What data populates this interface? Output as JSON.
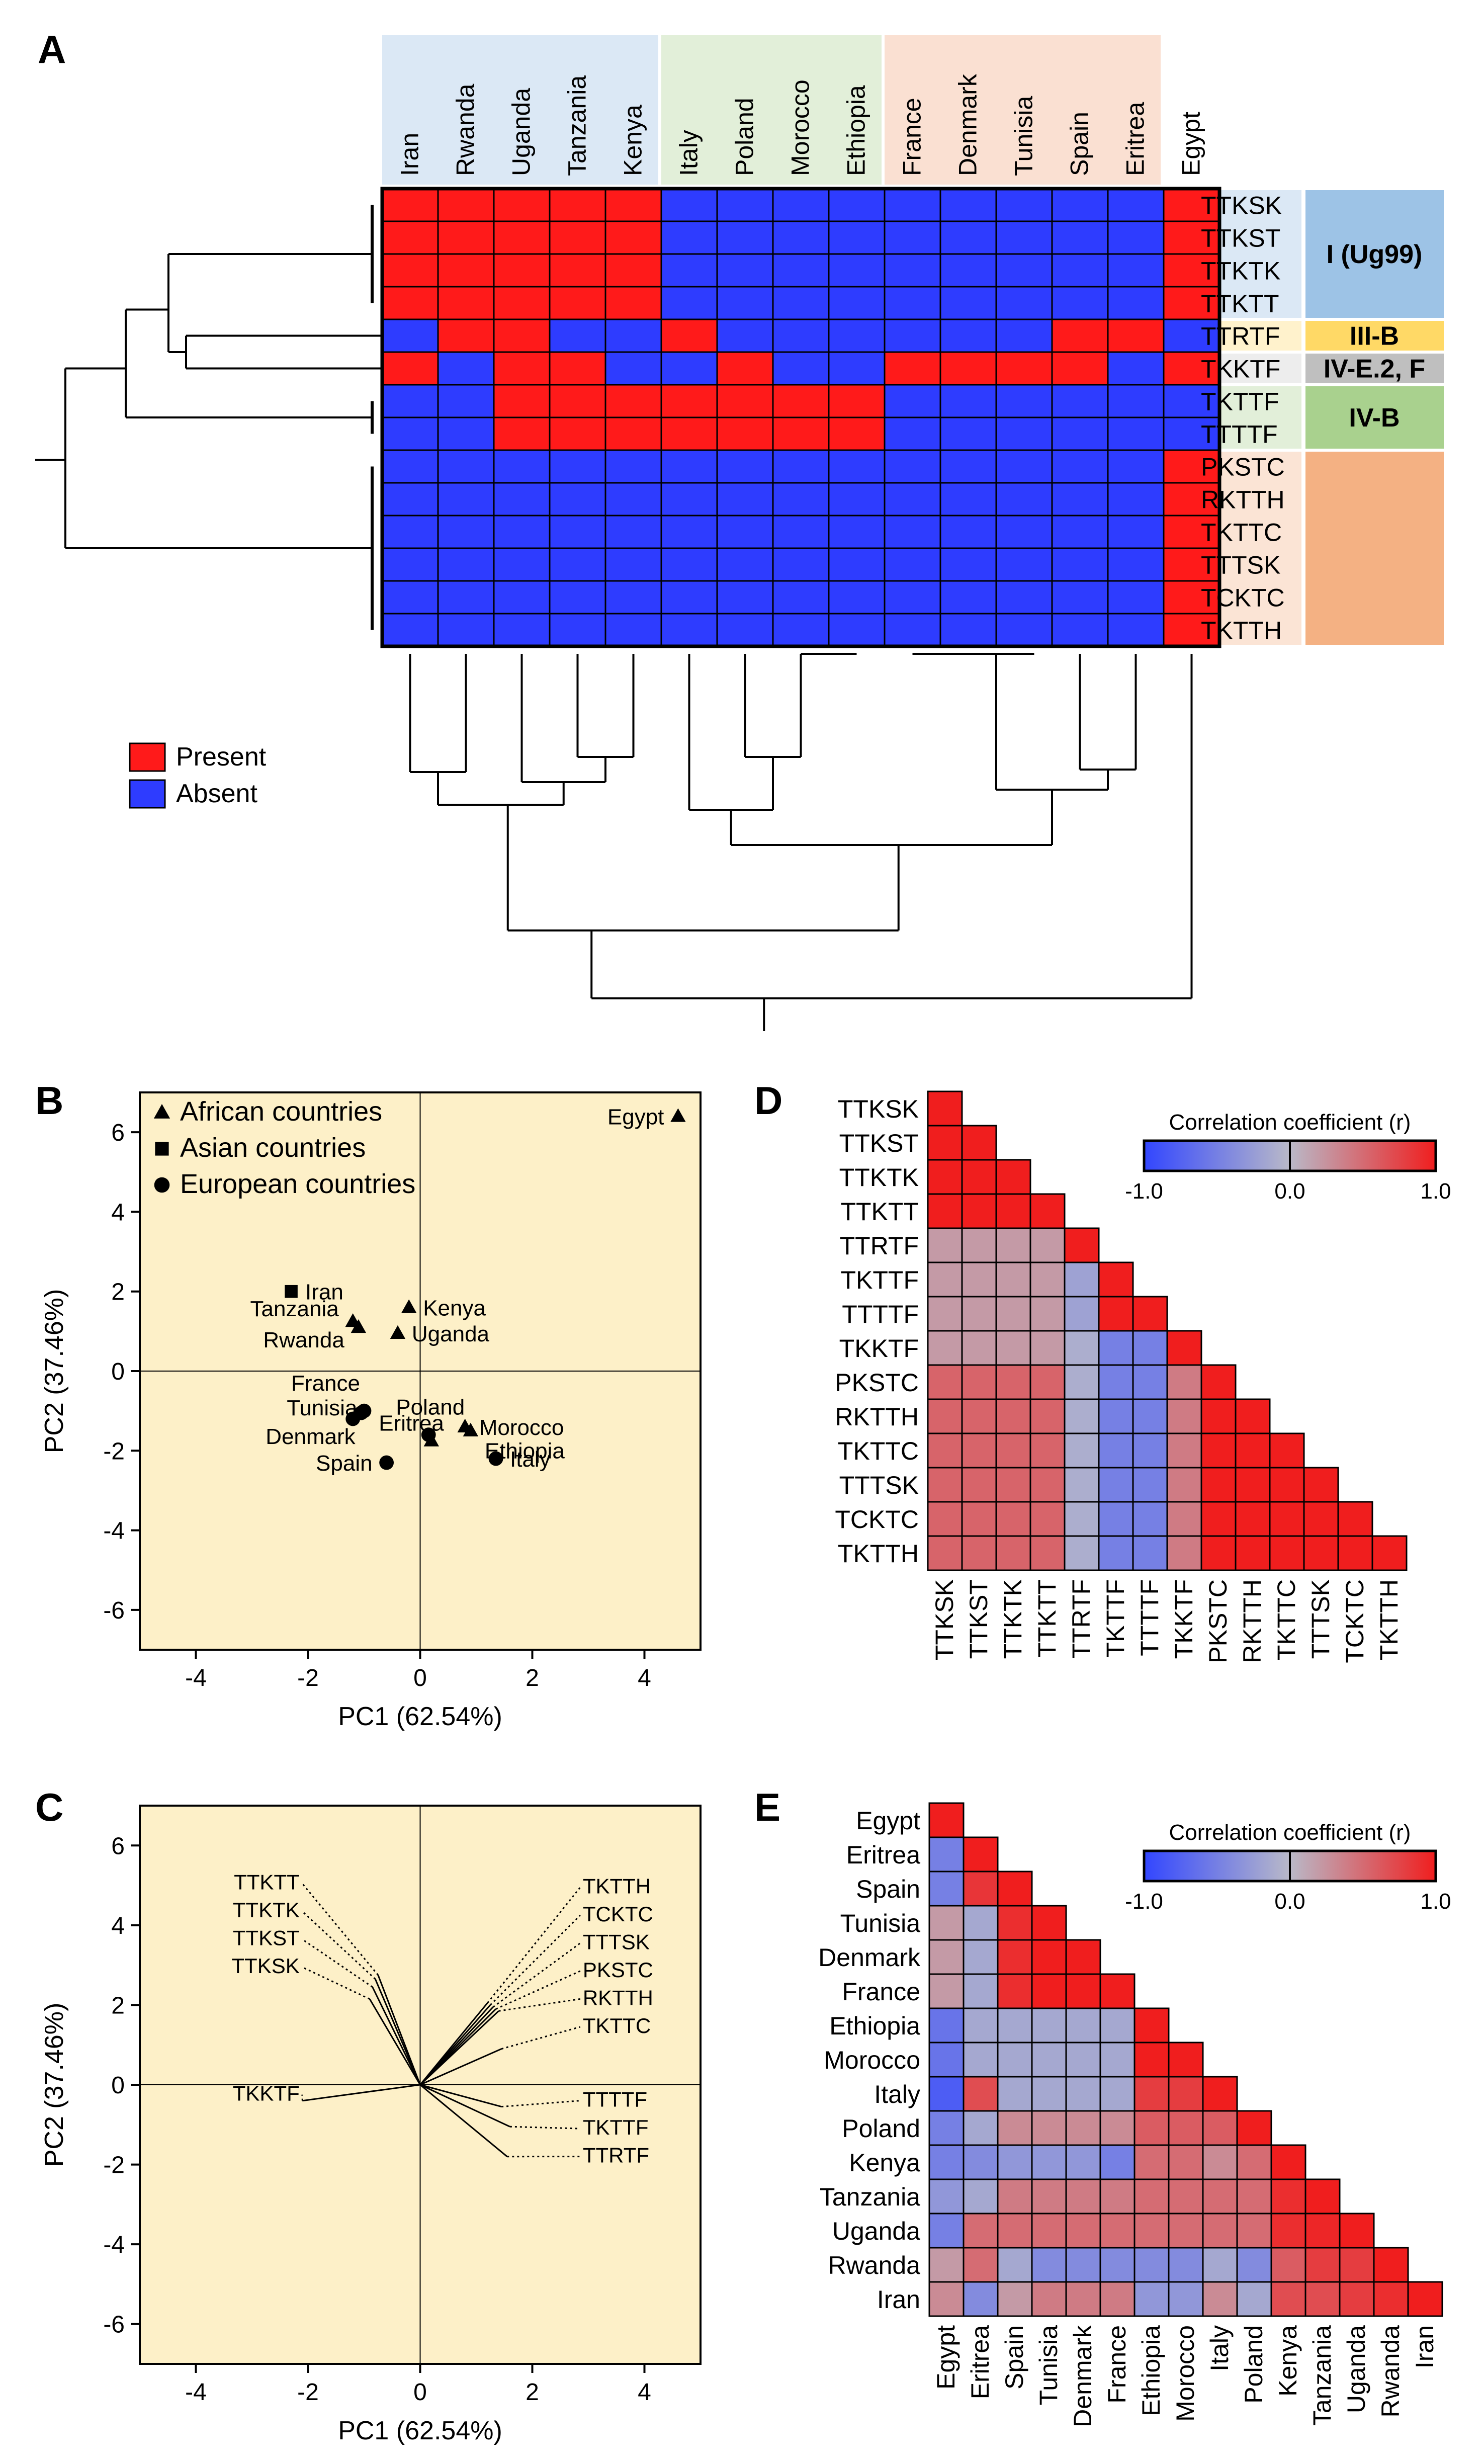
{
  "panels": {
    "a": "A",
    "b": "B",
    "c": "C",
    "d": "D",
    "e": "E"
  },
  "heatmap": {
    "columns": [
      "Iran",
      "Rwanda",
      "Uganda",
      "Tanzania",
      "Kenya",
      "Italy",
      "Poland",
      "Morocco",
      "Ethiopia",
      "France",
      "Denmark",
      "Tunisia",
      "Spain",
      "Eritrea",
      "Egypt"
    ],
    "rows": [
      "TTKSK",
      "TTKST",
      "TTKTK",
      "TTKTT",
      "TTRTF",
      "TKKTF",
      "TKTTF",
      "TTTTF",
      "PKSTC",
      "RKTTH",
      "TKTTC",
      "TTTSK",
      "TCKTC",
      "TKTTH"
    ],
    "matrix": [
      [
        1,
        1,
        1,
        1,
        1,
        0,
        0,
        0,
        0,
        0,
        0,
        0,
        0,
        0,
        1
      ],
      [
        1,
        1,
        1,
        1,
        1,
        0,
        0,
        0,
        0,
        0,
        0,
        0,
        0,
        0,
        1
      ],
      [
        1,
        1,
        1,
        1,
        1,
        0,
        0,
        0,
        0,
        0,
        0,
        0,
        0,
        0,
        1
      ],
      [
        1,
        1,
        1,
        1,
        1,
        0,
        0,
        0,
        0,
        0,
        0,
        0,
        0,
        0,
        1
      ],
      [
        0,
        1,
        1,
        0,
        0,
        1,
        0,
        0,
        0,
        0,
        0,
        0,
        1,
        1,
        0
      ],
      [
        1,
        0,
        1,
        1,
        0,
        0,
        1,
        0,
        0,
        1,
        1,
        1,
        1,
        0,
        1
      ],
      [
        0,
        0,
        1,
        1,
        1,
        1,
        1,
        1,
        1,
        0,
        0,
        0,
        0,
        0,
        0
      ],
      [
        0,
        0,
        1,
        1,
        1,
        1,
        1,
        1,
        1,
        0,
        0,
        0,
        0,
        0,
        0
      ],
      [
        0,
        0,
        0,
        0,
        0,
        0,
        0,
        0,
        0,
        0,
        0,
        0,
        0,
        0,
        1
      ],
      [
        0,
        0,
        0,
        0,
        0,
        0,
        0,
        0,
        0,
        0,
        0,
        0,
        0,
        0,
        1
      ],
      [
        0,
        0,
        0,
        0,
        0,
        0,
        0,
        0,
        0,
        0,
        0,
        0,
        0,
        0,
        1
      ],
      [
        0,
        0,
        0,
        0,
        0,
        0,
        0,
        0,
        0,
        0,
        0,
        0,
        0,
        0,
        1
      ],
      [
        0,
        0,
        0,
        0,
        0,
        0,
        0,
        0,
        0,
        0,
        0,
        0,
        0,
        0,
        1
      ],
      [
        0,
        0,
        0,
        0,
        0,
        0,
        0,
        0,
        0,
        0,
        0,
        0,
        0,
        0,
        1
      ]
    ],
    "column_groups": [
      {
        "span": [
          0,
          4
        ],
        "color": "#dbe8f5"
      },
      {
        "span": [
          5,
          8
        ],
        "color": "#e2efd9"
      },
      {
        "span": [
          9,
          13
        ],
        "color": "#fae0d2"
      }
    ],
    "row_groups": [
      {
        "label": "I (Ug99)",
        "span": [
          0,
          3
        ],
        "color": "#9dc3e6",
        "bg": "#dbe8f5"
      },
      {
        "label": "III-B",
        "span": [
          4,
          4
        ],
        "color": "#ffd966",
        "bg": "#fff2cc"
      },
      {
        "label": "IV-E.2, F",
        "span": [
          5,
          5
        ],
        "color": "#bfbfbf",
        "bg": "#ededed"
      },
      {
        "label": "IV-B",
        "span": [
          6,
          7
        ],
        "color": "#a9d18e",
        "bg": "#e2efd9"
      },
      {
        "label": "",
        "span": [
          8,
          13
        ],
        "color": "#f4b183",
        "bg": "#fbe4d5"
      }
    ],
    "legend": [
      {
        "label": "Present",
        "color": "#ff1a1a"
      },
      {
        "label": "Absent",
        "color": "#2e3cff"
      }
    ],
    "present_color": "#ff1a1a",
    "absent_color": "#2e3cff"
  },
  "chart_data": [
    {
      "type": "scatter",
      "panel": "B",
      "title": "",
      "xlabel": "PC1 (62.54%)",
      "ylabel": "PC2 (37.46%)",
      "xlim": [
        -5,
        5
      ],
      "ylim": [
        -7,
        7
      ],
      "xticks": [
        -4,
        -2,
        0,
        2,
        4
      ],
      "yticks": [
        -6,
        -4,
        -2,
        0,
        2,
        4,
        6
      ],
      "background": "#fdf0c8",
      "legend": [
        {
          "label": "African countries",
          "marker": "triangle"
        },
        {
          "label": "Asian countries",
          "marker": "square"
        },
        {
          "label": "European countries",
          "marker": "circle"
        }
      ],
      "points": [
        {
          "name": "Egypt",
          "x": 4.6,
          "y": 6.4,
          "marker": "triangle",
          "label_side": "left"
        },
        {
          "name": "Iran",
          "x": -2.3,
          "y": 2.0,
          "marker": "square",
          "label_side": "right"
        },
        {
          "name": "Tanzania",
          "x": -1.2,
          "y": 1.25,
          "marker": "triangle",
          "label_side": "left"
        },
        {
          "name": "Rwanda",
          "x": -1.1,
          "y": 1.1,
          "marker": "triangle",
          "label_side": "left"
        },
        {
          "name": "Kenya",
          "x": -0.2,
          "y": 1.6,
          "marker": "triangle",
          "label_side": "right"
        },
        {
          "name": "Uganda",
          "x": -0.4,
          "y": 0.95,
          "marker": "triangle",
          "label_side": "right"
        },
        {
          "name": "France",
          "x": -1.0,
          "y": -1.0,
          "marker": "circle",
          "label_side": "left"
        },
        {
          "name": "Tunisia",
          "x": -1.05,
          "y": -1.05,
          "marker": "circle",
          "label_side": "left"
        },
        {
          "name": "Denmark",
          "x": -1.2,
          "y": -1.2,
          "marker": "circle",
          "label_side": "left"
        },
        {
          "name": "Spain",
          "x": -0.6,
          "y": -2.3,
          "marker": "circle",
          "label_side": "left"
        },
        {
          "name": "Poland",
          "x": 0.15,
          "y": -1.6,
          "marker": "circle",
          "label_side": "above"
        },
        {
          "name": "Eritrea",
          "x": 0.2,
          "y": -1.75,
          "marker": "triangle",
          "label_side": "leftabove"
        },
        {
          "name": "Morocco",
          "x": 0.8,
          "y": -1.4,
          "marker": "triangle",
          "label_side": "right"
        },
        {
          "name": "Ethiopia",
          "x": 0.9,
          "y": -1.5,
          "marker": "triangle",
          "label_side": "rightbelow"
        },
        {
          "name": "Italy",
          "x": 1.35,
          "y": -2.2,
          "marker": "circle",
          "label_side": "right"
        }
      ]
    },
    {
      "type": "biplot",
      "panel": "C",
      "title": "",
      "xlabel": "PC1 (62.54%)",
      "ylabel": "PC2 (37.46%)",
      "xlim": [
        -5,
        5
      ],
      "ylim": [
        -7,
        7
      ],
      "xticks": [
        -4,
        -2,
        0,
        2,
        4
      ],
      "yticks": [
        -6,
        -4,
        -2,
        0,
        2,
        4,
        6
      ],
      "background": "#fdf0c8",
      "loadings": [
        {
          "name": "TTKTT",
          "x": -0.75,
          "y": 2.75,
          "lx": -2.15,
          "ly": 4.9,
          "side": "left"
        },
        {
          "name": "TTKTK",
          "x": -0.8,
          "y": 2.65,
          "lx": -2.15,
          "ly": 4.2,
          "side": "left"
        },
        {
          "name": "TTKST",
          "x": -0.85,
          "y": 2.45,
          "lx": -2.15,
          "ly": 3.5,
          "side": "left"
        },
        {
          "name": "TTKSK",
          "x": -0.9,
          "y": 2.15,
          "lx": -2.15,
          "ly": 2.8,
          "side": "left"
        },
        {
          "name": "TKKTF",
          "x": -2.1,
          "y": -0.4,
          "lx": -2.15,
          "ly": -0.4,
          "side": "left"
        },
        {
          "name": "TKTTH",
          "x": 1.2,
          "y": 2.05,
          "lx": 2.9,
          "ly": 4.8,
          "side": "right"
        },
        {
          "name": "TCKTC",
          "x": 1.25,
          "y": 2.0,
          "lx": 2.9,
          "ly": 4.1,
          "side": "right"
        },
        {
          "name": "TTTSK",
          "x": 1.3,
          "y": 1.95,
          "lx": 2.9,
          "ly": 3.4,
          "side": "right"
        },
        {
          "name": "PKSTC",
          "x": 1.35,
          "y": 1.9,
          "lx": 2.9,
          "ly": 2.7,
          "side": "right"
        },
        {
          "name": "RKTTH",
          "x": 1.4,
          "y": 1.85,
          "lx": 2.9,
          "ly": 2.0,
          "side": "right"
        },
        {
          "name": "TKTTC",
          "x": 1.45,
          "y": 0.9,
          "lx": 2.9,
          "ly": 1.3,
          "side": "right"
        },
        {
          "name": "TTTTF",
          "x": 1.45,
          "y": -0.55,
          "lx": 2.9,
          "ly": -0.55,
          "side": "right"
        },
        {
          "name": "TKTTF",
          "x": 1.6,
          "y": -1.05,
          "lx": 2.9,
          "ly": -1.25,
          "side": "right"
        },
        {
          "name": "TTRTF",
          "x": 1.55,
          "y": -1.8,
          "lx": 2.9,
          "ly": -1.95,
          "side": "right"
        }
      ]
    },
    {
      "type": "heatmap",
      "panel": "D",
      "title": "Correlation coefficient (r)",
      "colorbar": {
        "min": -1.0,
        "mid": 0.0,
        "max": 1.0,
        "tick_labels": [
          "-1.0",
          "0.0",
          "1.0"
        ]
      },
      "labels": [
        "TTKSK",
        "TTKST",
        "TTKTK",
        "TTKTT",
        "TTRTF",
        "TKTTF",
        "TTTTF",
        "TKKTF",
        "PKSTC",
        "RKTTH",
        "TKTTC",
        "TTTSK",
        "TCKTC",
        "TKTTH"
      ],
      "lower_triangle": [
        [
          1
        ],
        [
          1,
          1
        ],
        [
          1,
          1,
          1
        ],
        [
          1,
          1,
          1,
          1
        ],
        [
          0.2,
          0.2,
          0.2,
          0.2,
          1
        ],
        [
          0.2,
          0.2,
          0.2,
          0.2,
          -0.2,
          1
        ],
        [
          0.2,
          0.2,
          0.2,
          0.2,
          -0.2,
          1,
          1
        ],
        [
          0.2,
          0.2,
          0.2,
          0.2,
          -0.1,
          -0.5,
          -0.5,
          1
        ],
        [
          0.55,
          0.55,
          0.55,
          0.55,
          -0.1,
          -0.5,
          -0.5,
          0.4,
          1
        ],
        [
          0.55,
          0.55,
          0.55,
          0.55,
          -0.1,
          -0.5,
          -0.5,
          0.4,
          1,
          1
        ],
        [
          0.55,
          0.55,
          0.55,
          0.55,
          -0.1,
          -0.5,
          -0.5,
          0.4,
          1,
          1,
          1
        ],
        [
          0.55,
          0.55,
          0.55,
          0.55,
          -0.1,
          -0.5,
          -0.5,
          0.4,
          1,
          1,
          1,
          1
        ],
        [
          0.55,
          0.55,
          0.55,
          0.55,
          -0.1,
          -0.5,
          -0.5,
          0.4,
          1,
          1,
          1,
          1,
          1
        ],
        [
          0.55,
          0.55,
          0.55,
          0.55,
          -0.1,
          -0.5,
          -0.5,
          0.4,
          1,
          1,
          1,
          1,
          1,
          1
        ]
      ]
    },
    {
      "type": "heatmap",
      "panel": "E",
      "title": "Correlation coefficient (r)",
      "colorbar": {
        "min": -1.0,
        "mid": 0.0,
        "max": 1.0,
        "tick_labels": [
          "-1.0",
          "0.0",
          "1.0"
        ]
      },
      "labels": [
        "Egypt",
        "Eritrea",
        "Spain",
        "Tunisia",
        "Denmark",
        "France",
        "Ethiopia",
        "Morocco",
        "Italy",
        "Poland",
        "Kenya",
        "Tanzania",
        "Uganda",
        "Rwanda",
        "Iran"
      ],
      "lower_triangle": [
        [
          1
        ],
        [
          -0.5,
          1
        ],
        [
          -0.5,
          0.85,
          1
        ],
        [
          0.2,
          -0.15,
          0.9,
          1
        ],
        [
          0.2,
          -0.15,
          0.9,
          1,
          1
        ],
        [
          0.2,
          -0.15,
          0.9,
          1,
          1,
          1
        ],
        [
          -0.6,
          -0.15,
          -0.15,
          -0.15,
          -0.15,
          -0.15,
          1
        ],
        [
          -0.6,
          -0.15,
          -0.15,
          -0.15,
          -0.15,
          -0.15,
          1,
          1
        ],
        [
          -0.8,
          0.7,
          -0.15,
          -0.15,
          -0.15,
          -0.15,
          0.8,
          0.8,
          1
        ],
        [
          -0.5,
          -0.15,
          0.3,
          0.3,
          0.3,
          0.3,
          0.6,
          0.6,
          0.6,
          1
        ],
        [
          -0.5,
          -0.4,
          -0.3,
          -0.3,
          -0.3,
          -0.5,
          0.5,
          0.5,
          0.3,
          0.5,
          1
        ],
        [
          -0.3,
          -0.15,
          0.4,
          0.4,
          0.4,
          0.4,
          0.5,
          0.5,
          0.5,
          0.5,
          0.9,
          1
        ],
        [
          -0.5,
          0.5,
          0.5,
          0.5,
          0.5,
          0.5,
          0.5,
          0.5,
          0.5,
          0.5,
          0.9,
          0.95,
          1
        ],
        [
          0.2,
          0.5,
          -0.15,
          -0.4,
          -0.4,
          -0.4,
          -0.4,
          -0.4,
          -0.15,
          -0.4,
          0.6,
          0.8,
          0.8,
          1
        ],
        [
          0.3,
          -0.4,
          0.2,
          0.4,
          0.4,
          0.4,
          -0.3,
          -0.3,
          0.3,
          -0.15,
          0.7,
          0.7,
          0.8,
          0.9,
          1
        ]
      ]
    }
  ]
}
